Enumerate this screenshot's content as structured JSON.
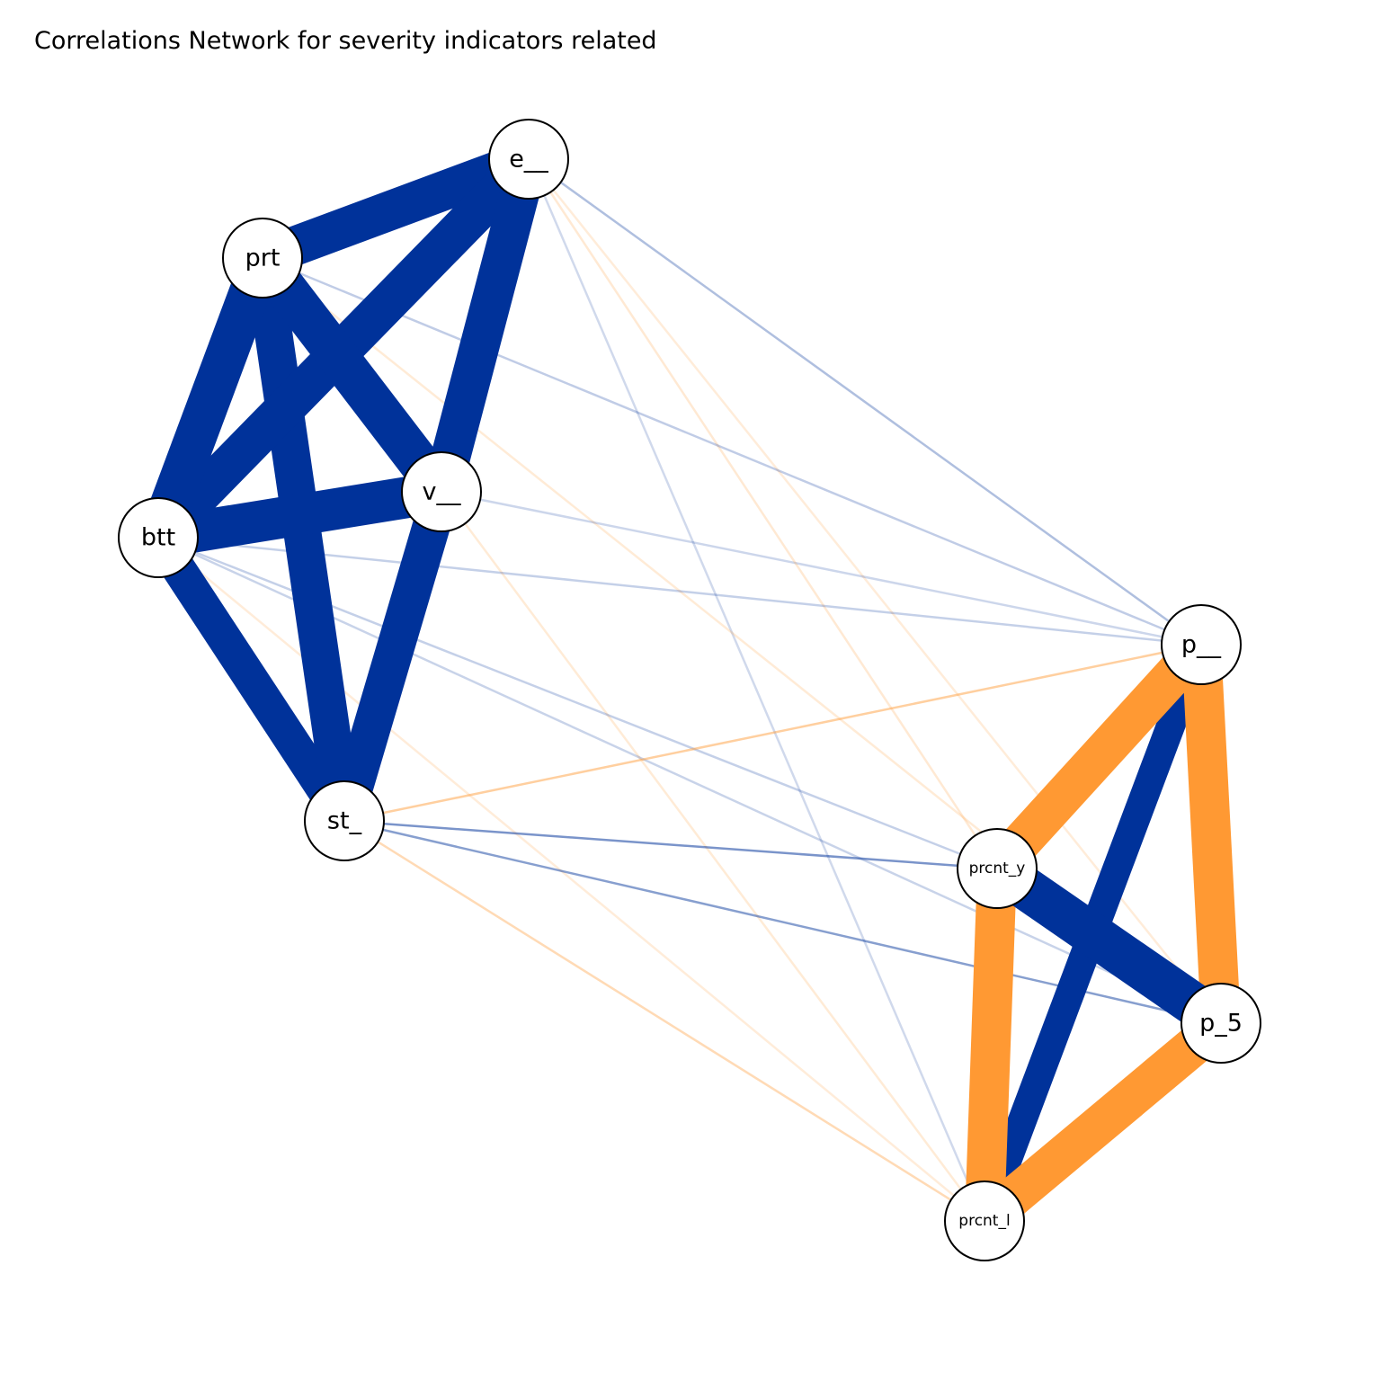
{
  "title": "Correlations Network for severity indicators related",
  "colors": {
    "positive": "#00329A",
    "negative": "#FF9933",
    "node_fill": "#FFFFFF",
    "node_stroke": "#000000"
  },
  "nodes": [
    {
      "id": "e__",
      "label": "e__"
    },
    {
      "id": "prt",
      "label": "prt"
    },
    {
      "id": "v__",
      "label": "v__"
    },
    {
      "id": "btt",
      "label": "btt"
    },
    {
      "id": "st_",
      "label": "st_"
    },
    {
      "id": "p__",
      "label": "p__"
    },
    {
      "id": "prcnt_y",
      "label": "prcnt_y"
    },
    {
      "id": "p_5",
      "label": "p_5"
    },
    {
      "id": "prcnt_l",
      "label": "prcnt_l"
    }
  ],
  "edges": [
    {
      "source": "e__",
      "target": "p__",
      "sign": "positive",
      "strength": 0.12
    },
    {
      "source": "e__",
      "target": "prcnt_y",
      "sign": "negative",
      "strength": 0.06
    },
    {
      "source": "e__",
      "target": "prcnt_l",
      "sign": "positive",
      "strength": 0.04
    },
    {
      "source": "e__",
      "target": "p_5",
      "sign": "negative",
      "strength": 0.04
    },
    {
      "source": "prt",
      "target": "p__",
      "sign": "positive",
      "strength": 0.08
    },
    {
      "source": "prt",
      "target": "p_5",
      "sign": "negative",
      "strength": 0.05
    },
    {
      "source": "v__",
      "target": "p__",
      "sign": "positive",
      "strength": 0.05
    },
    {
      "source": "v__",
      "target": "prcnt_l",
      "sign": "negative",
      "strength": 0.05
    },
    {
      "source": "btt",
      "target": "p__",
      "sign": "positive",
      "strength": 0.07
    },
    {
      "source": "btt",
      "target": "prcnt_y",
      "sign": "positive",
      "strength": 0.07
    },
    {
      "source": "btt",
      "target": "p_5",
      "sign": "positive",
      "strength": 0.06
    },
    {
      "source": "btt",
      "target": "prcnt_l",
      "sign": "negative",
      "strength": 0.04
    },
    {
      "source": "st_",
      "target": "prcnt_l",
      "sign": "negative",
      "strength": 0.15
    },
    {
      "source": "st_",
      "target": "p__",
      "sign": "negative",
      "strength": 0.22
    },
    {
      "source": "st_",
      "target": "prcnt_y",
      "sign": "positive",
      "strength": 0.25
    },
    {
      "source": "st_",
      "target": "p_5",
      "sign": "positive",
      "strength": 0.22
    },
    {
      "source": "e__",
      "target": "prt",
      "sign": "positive",
      "strength": 0.9
    },
    {
      "source": "e__",
      "target": "btt",
      "sign": "positive",
      "strength": 0.9
    },
    {
      "source": "e__",
      "target": "v__",
      "sign": "positive",
      "strength": 0.9
    },
    {
      "source": "prt",
      "target": "btt",
      "sign": "positive",
      "strength": 0.95
    },
    {
      "source": "prt",
      "target": "v__",
      "sign": "positive",
      "strength": 0.95
    },
    {
      "source": "prt",
      "target": "st_",
      "sign": "positive",
      "strength": 0.85
    },
    {
      "source": "btt",
      "target": "v__",
      "sign": "positive",
      "strength": 0.95
    },
    {
      "source": "btt",
      "target": "st_",
      "sign": "positive",
      "strength": 0.75
    },
    {
      "source": "v__",
      "target": "st_",
      "sign": "positive",
      "strength": 0.85
    },
    {
      "source": "p__",
      "target": "prcnt_y",
      "sign": "negative",
      "strength": 0.9
    },
    {
      "source": "p__",
      "target": "p_5",
      "sign": "negative",
      "strength": 0.9
    },
    {
      "source": "p__",
      "target": "prcnt_l",
      "sign": "positive",
      "strength": 0.6
    },
    {
      "source": "prcnt_y",
      "target": "prcnt_l",
      "sign": "negative",
      "strength": 0.9
    },
    {
      "source": "prcnt_l",
      "target": "p_5",
      "sign": "negative",
      "strength": 0.9
    },
    {
      "source": "prcnt_y",
      "target": "p_5",
      "sign": "positive",
      "strength": 1.0
    }
  ]
}
